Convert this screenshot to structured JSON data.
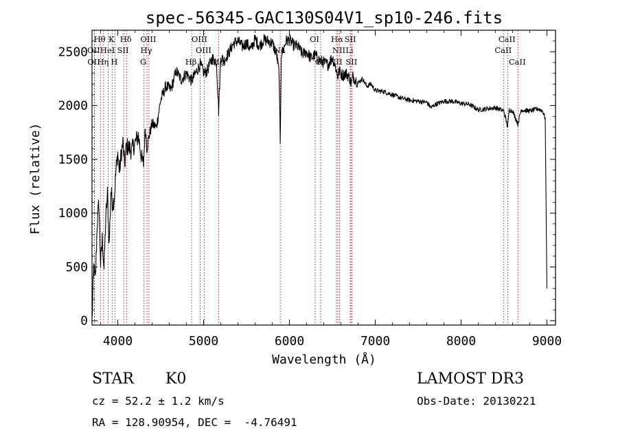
{
  "chart_data": {
    "type": "line",
    "title": "spec-56345-GAC130S04V1_sp10-246.fits",
    "xlabel": "Wavelength (Å)",
    "ylabel": "Flux (relative)",
    "xlim": [
      3700,
      9100
    ],
    "ylim": [
      -40,
      2700
    ],
    "xticks": [
      4000,
      5000,
      6000,
      7000,
      8000,
      9000
    ],
    "xtick_labels": [
      "4000",
      "5000",
      "6000",
      "7000",
      "8000",
      "9000"
    ],
    "yticks": [
      0,
      500,
      1000,
      1500,
      2000,
      2500
    ],
    "ytick_labels": [
      "0",
      "500",
      "1000",
      "1500",
      "2000",
      "2500"
    ],
    "grid": false,
    "series": [
      {
        "color": "#000000",
        "x": [
          3700,
          3720,
          3740,
          3760,
          3780,
          3800,
          3820,
          3840,
          3860,
          3880,
          3900,
          3920,
          3940,
          3960,
          3980,
          4000,
          4020,
          4040,
          4060,
          4080,
          4100,
          4130,
          4160,
          4200,
          4240,
          4280,
          4300,
          4320,
          4340,
          4360,
          4400,
          4450,
          4500,
          4560,
          4620,
          4680,
          4740,
          4800,
          4861,
          4900,
          4960,
          5007,
          5040,
          5100,
          5150,
          5175,
          5200,
          5240,
          5300,
          5350,
          5400,
          5450,
          5500,
          5550,
          5600,
          5650,
          5700,
          5750,
          5800,
          5850,
          5880,
          5893,
          5905,
          5930,
          5960,
          6000,
          6050,
          6100,
          6150,
          6200,
          6250,
          6300,
          6350,
          6400,
          6450,
          6500,
          6540,
          6563,
          6580,
          6620,
          6660,
          6700,
          6720,
          6740,
          6800,
          6850,
          6900,
          6950,
          7000,
          7100,
          7200,
          7300,
          7400,
          7500,
          7600,
          7650,
          7700,
          7800,
          7900,
          8000,
          8100,
          8200,
          8300,
          8400,
          8498,
          8542,
          8560,
          8600,
          8662,
          8700,
          8800,
          8850,
          8900,
          8950,
          8980,
          9000
        ],
        "y": [
          0,
          500,
          380,
          900,
          1100,
          520,
          760,
          480,
          940,
          1180,
          700,
          1210,
          1080,
          1150,
          1400,
          1560,
          1380,
          1550,
          1650,
          1450,
          1620,
          1610,
          1580,
          1650,
          1720,
          1500,
          1450,
          1800,
          1600,
          1700,
          1830,
          1800,
          2050,
          2180,
          2150,
          2320,
          2240,
          2300,
          2230,
          2290,
          2380,
          2300,
          2320,
          2440,
          2410,
          1950,
          2450,
          2420,
          2500,
          2580,
          2600,
          2550,
          2580,
          2520,
          2620,
          2550,
          2610,
          2600,
          2580,
          2480,
          2300,
          1620,
          2480,
          2520,
          2600,
          2610,
          2560,
          2550,
          2480,
          2500,
          2440,
          2470,
          2420,
          2400,
          2380,
          2450,
          2350,
          2270,
          2320,
          2280,
          2300,
          2260,
          2200,
          2270,
          2210,
          2250,
          2180,
          2200,
          2140,
          2130,
          2100,
          2070,
          2050,
          2040,
          2030,
          1980,
          2010,
          2040,
          2040,
          2020,
          2010,
          1960,
          1970,
          1980,
          1950,
          1800,
          1960,
          1950,
          1830,
          1960,
          1950,
          1960,
          1970,
          1950,
          1880,
          300
        ]
      }
    ],
    "line_markers": [
      {
        "label": "Hθ",
        "x": 3798,
        "row": 0
      },
      {
        "label": "K",
        "x": 3934,
        "row": 0
      },
      {
        "label": "Hδ",
        "x": 4102,
        "row": 0
      },
      {
        "label": "OIII",
        "x": 4363,
        "row": 0
      },
      {
        "label": "OIII",
        "x": 4959,
        "row": 0
      },
      {
        "label": "OI",
        "x": 6300,
        "row": 0
      },
      {
        "label": "Hα",
        "x": 6563,
        "row": 0
      },
      {
        "label": "SII",
        "x": 6717,
        "row": 0
      },
      {
        "label": "CaII",
        "x": 8542,
        "row": 0
      },
      {
        "label": "OII",
        "x": 3727,
        "row": 1
      },
      {
        "label": "HeI",
        "x": 3889,
        "row": 1
      },
      {
        "label": "SII",
        "x": 4069,
        "row": 1
      },
      {
        "label": "Hγ",
        "x": 4340,
        "row": 1
      },
      {
        "label": "OIII",
        "x": 5007,
        "row": 1
      },
      {
        "label": "Na",
        "x": 5893,
        "row": 1
      },
      {
        "label": "NII",
        "x": 6584,
        "row": 1
      },
      {
        "label": "Li",
        "x": 6708,
        "row": 1
      },
      {
        "label": "CaII",
        "x": 8498,
        "row": 1
      },
      {
        "label": "OII",
        "x": 3729,
        "row": 2
      },
      {
        "label": "Hη",
        "x": 3835,
        "row": 2
      },
      {
        "label": "H",
        "x": 3968,
        "row": 2
      },
      {
        "label": "G",
        "x": 4305,
        "row": 2
      },
      {
        "label": "Hβ",
        "x": 4861,
        "row": 2
      },
      {
        "label": "Mg",
        "x": 5175,
        "row": 2
      },
      {
        "label": "OI",
        "x": 6364,
        "row": 2
      },
      {
        "label": "NII",
        "x": 6548,
        "row": 2
      },
      {
        "label": "SII",
        "x": 6731,
        "row": 2
      },
      {
        "label": "CaII",
        "x": 8662,
        "row": 2
      }
    ]
  },
  "info": {
    "class_label": "STAR",
    "subclass": "K0",
    "survey": "LAMOST DR3",
    "redshift": "cz = 52.2 ± 1.2 km/s",
    "obs_date": "Obs-Date: 20130221",
    "coords": "RA = 128.90954, DEC =  -4.76491"
  }
}
